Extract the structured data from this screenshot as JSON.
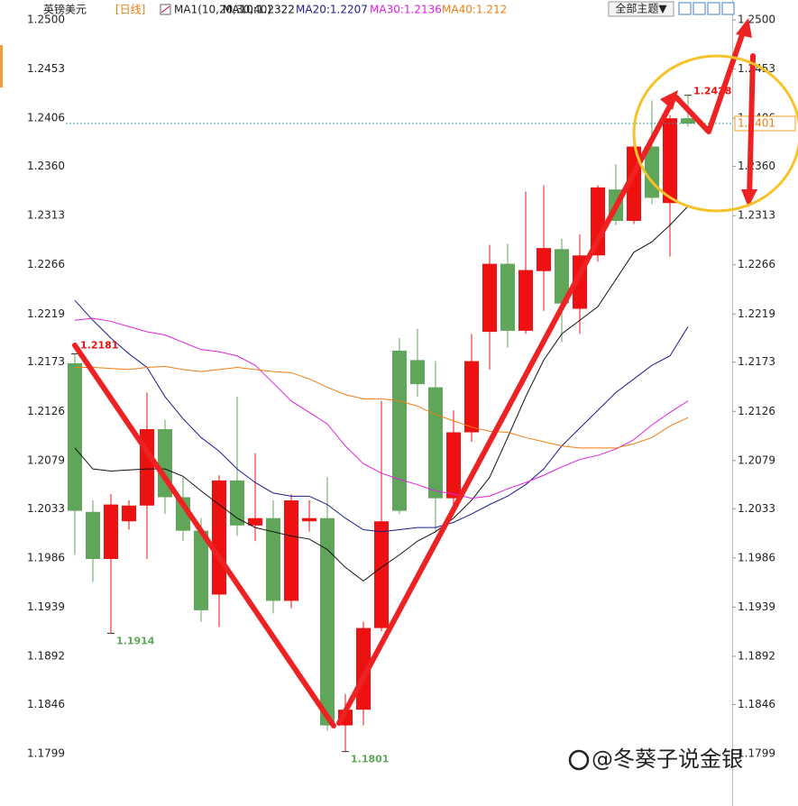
{
  "chart_data": {
    "type": "candlestick",
    "title": "英镑美元",
    "period": "[日线]",
    "indicator": "MA1(10,20,30,40)",
    "theme_button": "全部主题▼",
    "watermark": "@冬葵子说金银",
    "categories": [
      null,
      null,
      null,
      null,
      null,
      null,
      null,
      null,
      null,
      null,
      null,
      null,
      null,
      null,
      null,
      null,
      null,
      null,
      null,
      null,
      null,
      null,
      null,
      null,
      null,
      null,
      null,
      null,
      null,
      null,
      null,
      null,
      null,
      null,
      null
    ],
    "open": [
      1.2172,
      1.203,
      1.1985,
      1.2021,
      1.2036,
      1.2109,
      1.2044,
      1.2012,
      1.1951,
      1.206,
      1.2017,
      1.2024,
      1.1945,
      1.2021,
      1.2024,
      1.1826,
      1.1841,
      1.1919,
      1.2184,
      1.2175,
      1.2149,
      1.2043,
      1.2106,
      1.2202,
      1.2267,
      1.2203,
      1.226,
      1.2281,
      1.2224,
      1.2275,
      1.2338,
      1.2308,
      1.2379,
      1.2325,
      1.2406
    ],
    "high": [
      1.2181,
      1.2041,
      1.2047,
      1.2041,
      1.2144,
      1.2118,
      1.2063,
      1.2024,
      1.2065,
      1.214,
      1.2086,
      1.2041,
      1.2047,
      1.2041,
      1.2063,
      1.1856,
      1.1925,
      1.2136,
      1.2196,
      1.2205,
      1.2174,
      1.2127,
      1.22,
      1.2285,
      1.2286,
      1.2336,
      1.2342,
      1.2291,
      1.2295,
      1.2342,
      1.2362,
      1.239,
      1.2423,
      1.2409,
      1.2428
    ],
    "low": [
      1.1989,
      1.1963,
      1.1914,
      1.2013,
      1.1985,
      1.2028,
      1.2002,
      1.1925,
      1.192,
      1.2007,
      1.2002,
      1.1933,
      1.1938,
      1.2011,
      1.1821,
      1.1801,
      1.1826,
      1.1916,
      1.2028,
      1.214,
      1.2011,
      1.2037,
      1.2097,
      1.2166,
      1.2187,
      1.22,
      1.2222,
      1.2192,
      1.22,
      1.2269,
      1.2304,
      1.2305,
      1.2324,
      1.2274,
      1.2398
    ],
    "close": [
      1.2031,
      1.1985,
      1.2037,
      1.2036,
      1.2109,
      1.2044,
      1.2012,
      1.1936,
      1.206,
      1.2017,
      1.2024,
      1.1945,
      1.2041,
      1.2024,
      1.1826,
      1.1841,
      1.1919,
      1.2021,
      1.2031,
      1.2152,
      1.2043,
      1.2106,
      1.2174,
      1.2267,
      1.2203,
      1.2261,
      1.2282,
      1.2229,
      1.2275,
      1.234,
      1.2308,
      1.2379,
      1.233,
      1.2406,
      1.2401
    ],
    "up_color": "#ee1111",
    "down_color": "#5fa55a",
    "series": [
      {
        "name": "MA10:1.2322",
        "color": "#111111",
        "values": [
          1.2091,
          1.2071,
          1.2069,
          1.207,
          1.2071,
          1.2071,
          1.2064,
          1.205,
          1.2037,
          1.2024,
          1.2015,
          1.2011,
          1.2007,
          1.2004,
          1.1994,
          1.1977,
          1.1964,
          1.1977,
          1.1989,
          1.2002,
          1.2011,
          1.2024,
          1.2041,
          1.2063,
          1.2101,
          1.214,
          1.2175,
          1.22,
          1.2213,
          1.2226,
          1.2252,
          1.2278,
          1.2288,
          1.2304,
          1.2322
        ]
      },
      {
        "name": "MA20:1.2207",
        "color": "#1c1c8c",
        "values": [
          1.2232,
          1.2213,
          1.2196,
          1.2181,
          1.2168,
          1.214,
          1.2119,
          1.2101,
          1.2088,
          1.2071,
          1.2058,
          1.2048,
          1.2045,
          1.2045,
          1.2037,
          1.2024,
          1.2013,
          1.2011,
          1.2013,
          1.2015,
          1.2015,
          1.202,
          1.2028,
          1.2037,
          1.2045,
          1.2056,
          1.2071,
          1.2093,
          1.211,
          1.2127,
          1.2144,
          1.2157,
          1.217,
          1.2179,
          1.2207
        ]
      },
      {
        "name": "MA30:1.2136",
        "color": "#e020e0",
        "values": [
          1.2213,
          1.2215,
          1.2212,
          1.2207,
          1.2202,
          1.2199,
          1.2192,
          1.2185,
          1.2183,
          1.2179,
          1.217,
          1.2153,
          1.2136,
          1.2125,
          1.2114,
          1.2093,
          1.2076,
          1.2067,
          1.2061,
          1.2056,
          1.205,
          1.2047,
          1.2043,
          1.2045,
          1.2052,
          1.2058,
          1.2065,
          1.2073,
          1.208,
          1.2084,
          1.209,
          1.2099,
          1.2113,
          1.2125,
          1.2136
        ]
      },
      {
        "name": "MA40:1.212",
        "color": "#f07d14",
        "values": [
          1.2168,
          1.2168,
          1.2167,
          1.2166,
          1.2168,
          1.2169,
          1.2166,
          1.2164,
          1.2166,
          1.2168,
          1.2166,
          1.2164,
          1.2163,
          1.2157,
          1.2149,
          1.2142,
          1.2138,
          1.2138,
          1.2136,
          1.2131,
          1.2123,
          1.2117,
          1.2111,
          1.2107,
          1.2106,
          1.2101,
          1.2097,
          1.2093,
          1.2091,
          1.2091,
          1.2091,
          1.2095,
          1.2101,
          1.2112,
          1.212
        ]
      }
    ],
    "ylim": [
      1.1749,
      1.2519
    ],
    "yticks": [
      {
        "value": 1.25,
        "label": "1.2500"
      },
      1.2453,
      1.2406,
      {
        "value": 1.236,
        "label": "1.2360"
      },
      1.2313,
      1.2266,
      1.2219,
      1.2173,
      1.2126,
      1.2079,
      1.2033,
      1.1986,
      1.1939,
      1.1892,
      1.1846,
      1.1799
    ],
    "grid": false
  }
}
